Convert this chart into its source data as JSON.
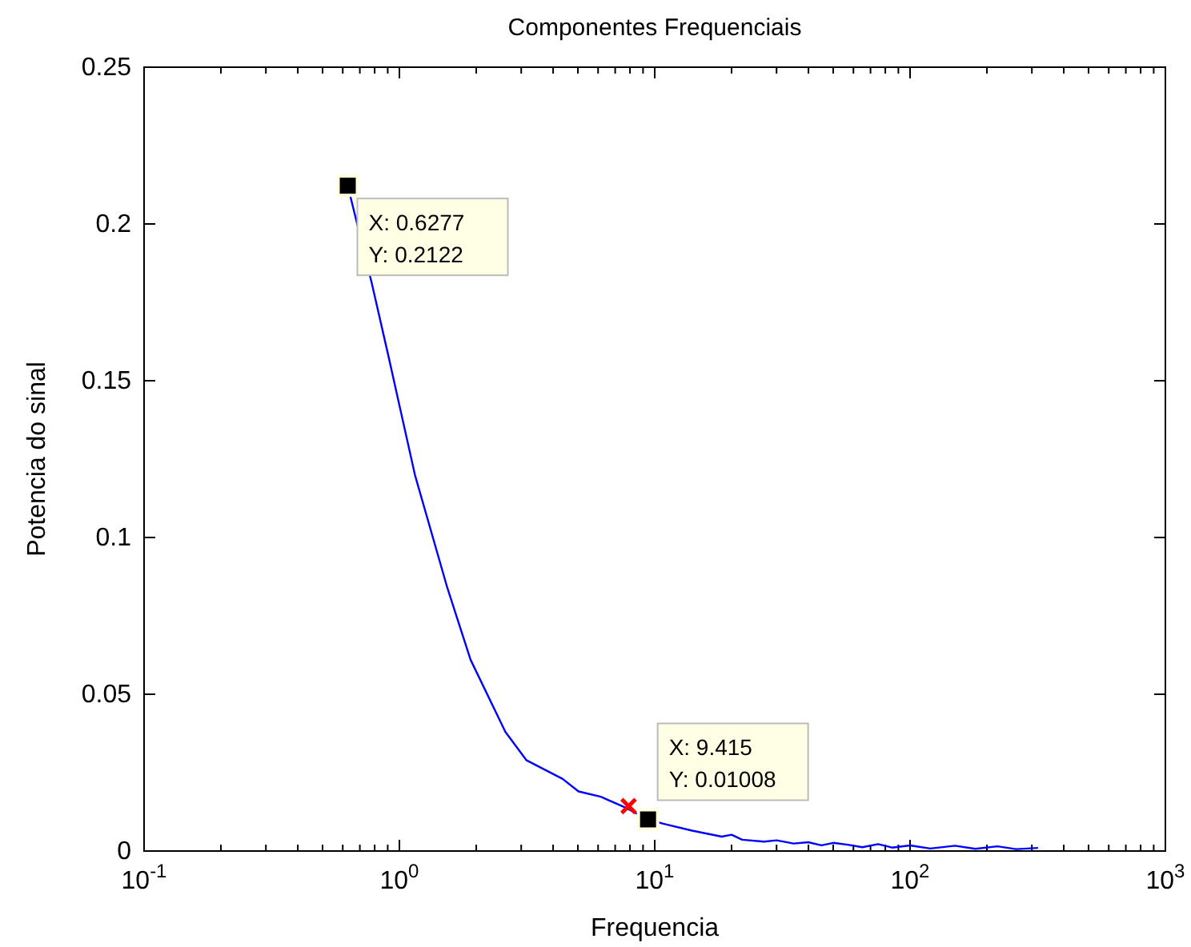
{
  "chart_data": {
    "type": "line",
    "title": "Componentes Frequenciais",
    "xlabel": "Frequencia",
    "ylabel": "Potencia do sinal",
    "log": "x",
    "grid": false,
    "xlim": [
      0.1,
      1000
    ],
    "xticks": [
      {
        "value": 0.1,
        "label": "10$^{-1}$"
      },
      {
        "value": 1,
        "label": "10$^{0}$"
      },
      {
        "value": 10,
        "label": "10$^{1}$"
      },
      {
        "value": 100,
        "label": "10$^{2}$"
      },
      {
        "value": 1000,
        "label": "10$^{3}$"
      }
    ],
    "ylim": [
      0,
      0.25
    ],
    "yticks": [
      0,
      0.05,
      0.1,
      0.15,
      0.2,
      0.25
    ],
    "series": [
      {
        "color": "#0000ff",
        "x": [
          0.6277,
          0.78,
          0.905,
          1.15,
          1.54,
          1.9,
          2.6,
          3.14,
          4.36,
          5.03,
          6.15,
          7.7,
          9.415,
          10.8,
          14,
          18.3,
          20,
          22,
          26.8,
          30,
          35,
          40,
          45,
          50,
          57,
          65,
          75,
          85,
          100,
          120,
          150,
          180,
          220,
          260,
          317
        ],
        "values": [
          0.2122,
          0.181,
          0.158,
          0.12,
          0.084,
          0.061,
          0.038,
          0.029,
          0.023,
          0.019,
          0.0173,
          0.0138,
          0.01008,
          0.0087,
          0.0065,
          0.0046,
          0.0052,
          0.0036,
          0.003,
          0.0034,
          0.0024,
          0.0028,
          0.0018,
          0.0026,
          0.002,
          0.0012,
          0.0022,
          0.0011,
          0.0018,
          0.0008,
          0.0017,
          0.0007,
          0.0015,
          0.0006,
          0.001
        ]
      },
      {
        "type": "scatter",
        "marker": "cross",
        "color": "#ff0000",
        "x": [
          7.9
        ],
        "values": [
          0.0143
        ]
      }
    ],
    "annotations": [
      {
        "text": "X: 0.6277\nY: 0.2122",
        "x": 0.6277,
        "y": 0.2122
      },
      {
        "text": "X: 9.415\nY: 0.01008",
        "x": 9.415,
        "y": 0.01008
      }
    ]
  }
}
